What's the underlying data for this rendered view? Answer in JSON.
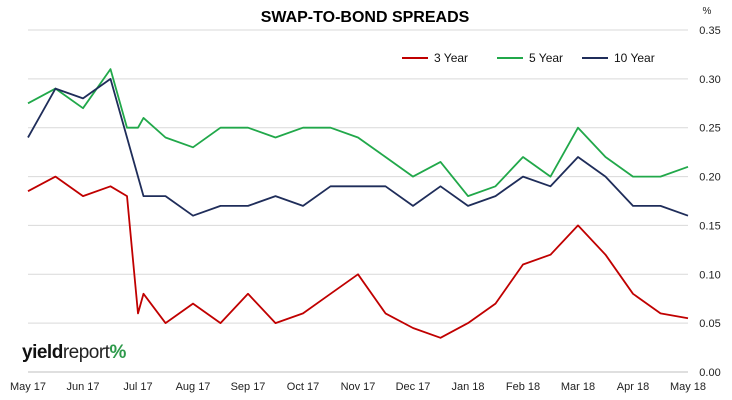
{
  "chart_data": {
    "type": "line",
    "title": "SWAP-TO-BOND SPREADS",
    "y_unit_label": "%",
    "xlabel": "",
    "ylabel": "",
    "ylim": [
      0.0,
      0.35
    ],
    "yticks": [
      "0.00",
      "0.05",
      "0.10",
      "0.15",
      "0.20",
      "0.25",
      "0.30",
      "0.35"
    ],
    "x_tick_labels": [
      "May 17",
      "Jun 17",
      "Jul 17",
      "Aug 17",
      "Sep 17",
      "Oct 17",
      "Nov 17",
      "Dec 17",
      "Jan 18",
      "Feb 18",
      "Mar 18",
      "Apr 18",
      "May 18"
    ],
    "grid": true,
    "legend_position": "top-right",
    "x_months": [
      0,
      0.5,
      1,
      1.5,
      1.8,
      2,
      2.1,
      2.5,
      3,
      3.5,
      4,
      4.5,
      5,
      5.5,
      6,
      6.5,
      7,
      7.5,
      8,
      8.5,
      9,
      9.5,
      10,
      10.5,
      11,
      11.5,
      12
    ],
    "series": [
      {
        "name": "3 Year",
        "color": "#c00000",
        "values": [
          0.185,
          0.2,
          0.18,
          0.19,
          0.18,
          0.06,
          0.08,
          0.05,
          0.07,
          0.05,
          0.08,
          0.05,
          0.06,
          0.08,
          0.1,
          0.06,
          0.045,
          0.035,
          0.05,
          0.07,
          0.11,
          0.12,
          0.15,
          0.12,
          0.08,
          0.06,
          0.055
        ]
      },
      {
        "name": "5 Year",
        "color": "#21a84a",
        "values": [
          0.275,
          0.29,
          0.27,
          0.31,
          0.25,
          0.25,
          0.26,
          0.24,
          0.23,
          0.25,
          0.25,
          0.24,
          0.25,
          0.25,
          0.24,
          0.22,
          0.2,
          0.215,
          0.18,
          0.19,
          0.22,
          0.2,
          0.25,
          0.22,
          0.2,
          0.2,
          0.21
        ]
      },
      {
        "name": "10 Year",
        "color": "#1f2d5a",
        "values": [
          0.24,
          0.29,
          0.28,
          0.3,
          0.24,
          0.2,
          0.18,
          0.18,
          0.16,
          0.17,
          0.17,
          0.18,
          0.17,
          0.19,
          0.19,
          0.19,
          0.17,
          0.19,
          0.17,
          0.18,
          0.2,
          0.19,
          0.22,
          0.2,
          0.17,
          0.17,
          0.16
        ]
      }
    ]
  },
  "brand": {
    "bold": "yield",
    "light": "report",
    "pct": "%"
  },
  "colors": {
    "grid": "#d9d9d9",
    "brand_green": "#2e9a4b",
    "brand_red": "#c0392b"
  }
}
